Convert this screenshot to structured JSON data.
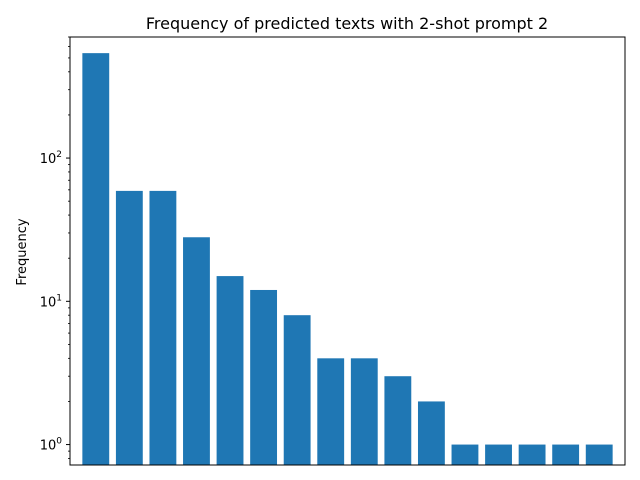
{
  "chart_data": {
    "type": "bar",
    "title": "Frequency of predicted texts with 2-shot prompt 2",
    "xlabel": "",
    "ylabel": "Frequency",
    "yscale": "log",
    "ylim": [
      0.72,
      700
    ],
    "grid": false,
    "legend": "none",
    "bar_color": "#1f77b4",
    "y_ticks": [
      {
        "value": 1,
        "base": "10",
        "exp": "0"
      },
      {
        "value": 10,
        "base": "10",
        "exp": "1"
      },
      {
        "value": 100,
        "base": "10",
        "exp": "2"
      }
    ],
    "values": [
      540,
      59,
      59,
      28,
      15,
      12,
      8,
      4,
      4,
      3,
      2,
      1,
      1,
      1,
      1,
      1
    ]
  }
}
